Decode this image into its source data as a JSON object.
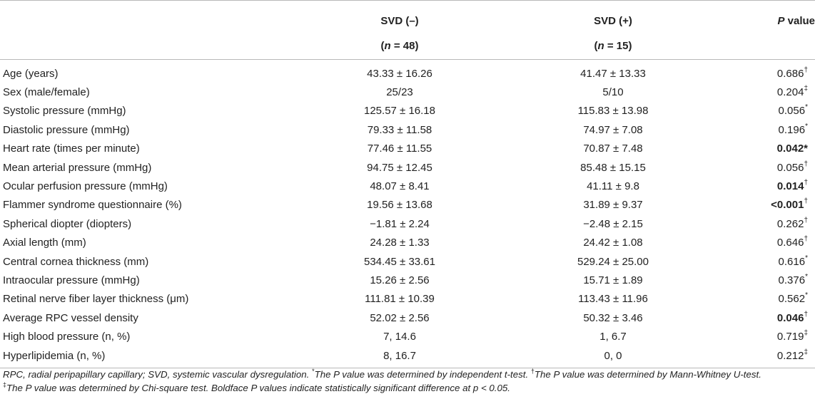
{
  "header": {
    "col1": "SVD (–)",
    "col1_n": "(n = 48)",
    "col2": "SVD (+)",
    "col2_n": "(n = 15)",
    "col3": "P value"
  },
  "rows": [
    {
      "label": "Age (years)",
      "a": "43.33 ± 16.26",
      "b": "41.47 ± 13.33",
      "p": "0.686",
      "mark": "†",
      "bold": false
    },
    {
      "label": "Sex (male/female)",
      "a": "25/23",
      "b": "5/10",
      "p": "0.204",
      "mark": "‡",
      "bold": false
    },
    {
      "label": "Systolic pressure (mmHg)",
      "a": "125.57 ± 16.18",
      "b": "115.83 ± 13.98",
      "p": "0.056",
      "mark": "*",
      "bold": false
    },
    {
      "label": "Diastolic pressure (mmHg)",
      "a": "79.33 ± 11.58",
      "b": "74.97 ± 7.08",
      "p": "0.196",
      "mark": "*",
      "bold": false
    },
    {
      "label": "Heart rate (times per minute)",
      "a": "77.46 ± 11.55",
      "b": "70.87 ± 7.48",
      "p": "0.042*",
      "mark": "",
      "bold": true
    },
    {
      "label": "Mean arterial pressure (mmHg)",
      "a": "94.75 ± 12.45",
      "b": "85.48 ± 15.15",
      "p": "0.056",
      "mark": "†",
      "bold": false
    },
    {
      "label": "Ocular perfusion pressure (mmHg)",
      "a": "48.07 ± 8.41",
      "b": "41.11 ± 9.8",
      "p": "0.014",
      "mark": "†",
      "bold": true
    },
    {
      "label": "Flammer syndrome questionnaire (%)",
      "a": "19.56 ± 13.68",
      "b": "31.89 ± 9.37",
      "p": "<0.001",
      "mark": "†",
      "bold": true
    },
    {
      "label": "Spherical diopter (diopters)",
      "a": "−1.81 ± 2.24",
      "b": "−2.48 ± 2.15",
      "p": "0.262",
      "mark": "†",
      "bold": false
    },
    {
      "label": "Axial length (mm)",
      "a": "24.28 ± 1.33",
      "b": "24.42 ± 1.08",
      "p": "0.646",
      "mark": "†",
      "bold": false
    },
    {
      "label": "Central cornea thickness (mm)",
      "a": "534.45 ± 33.61",
      "b": "529.24 ± 25.00",
      "p": "0.616",
      "mark": "*",
      "bold": false
    },
    {
      "label": "Intraocular pressure (mmHg)",
      "a": "15.26 ± 2.56",
      "b": "15.71 ± 1.89",
      "p": "0.376",
      "mark": "*",
      "bold": false
    },
    {
      "label": "Retinal nerve fiber layer thickness (μm)",
      "a": "111.81 ± 10.39",
      "b": "113.43 ± 11.96",
      "p": "0.562",
      "mark": "*",
      "bold": false
    },
    {
      "label": "Average RPC vessel density",
      "a": "52.02 ± 2.56",
      "b": "50.32 ± 3.46",
      "p": "0.046",
      "mark": "†",
      "bold": true
    },
    {
      "label": "High blood pressure (n, %)",
      "a": "7, 14.6",
      "b": "1, 6.7",
      "p": "0.719",
      "mark": "‡",
      "bold": false
    },
    {
      "label": "Hyperlipidemia (n, %)",
      "a": "8, 16.7",
      "b": "0, 0",
      "p": "0.212",
      "mark": "‡",
      "bold": false
    }
  ],
  "footnote": {
    "abbrev": "RPC, radial peripapillary capillary; SVD, systemic vascular dysregulation.",
    "star_mark": "*",
    "star_text": "The P value was determined by independent t-test.",
    "dagger_mark": "†",
    "dagger_text": "The P value was determined by Mann-Whitney U-test.",
    "ddagger_mark": "‡",
    "ddagger_text": "The P value was determined by Chi-square test. Boldface P values indicate statistically significant difference at p < 0.05."
  }
}
